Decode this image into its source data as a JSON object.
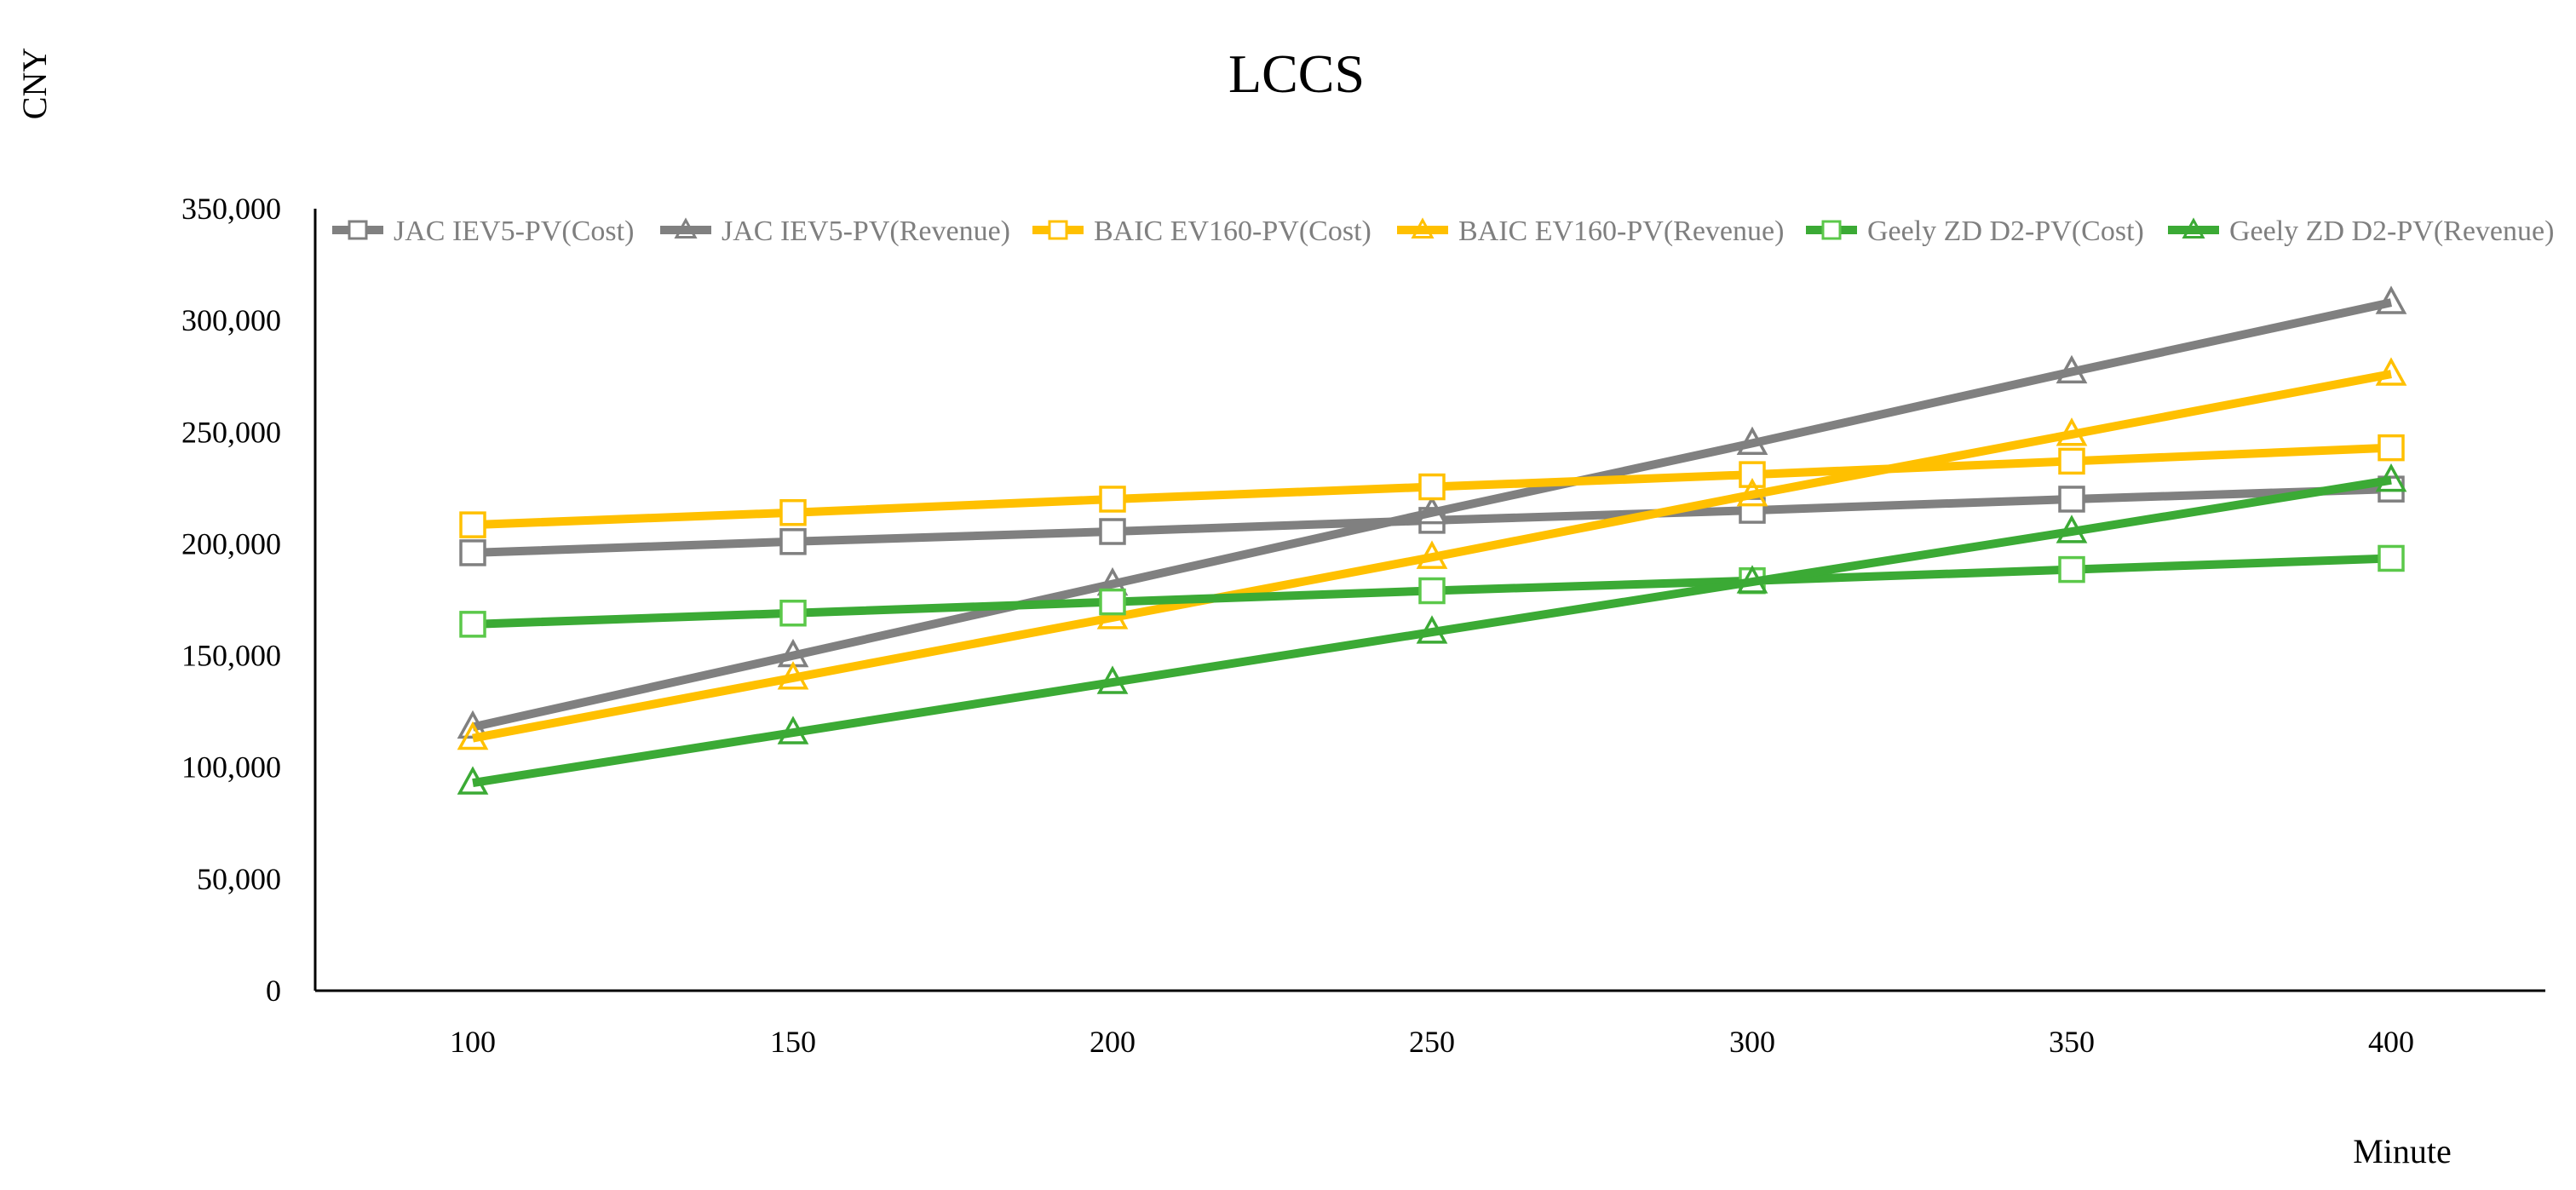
{
  "chart_data": {
    "type": "line",
    "title": "LCCS",
    "xlabel": "Minute",
    "ylabel": "CNY",
    "x": [
      100,
      150,
      200,
      250,
      300,
      350,
      400
    ],
    "x_tick_labels": [
      "100",
      "150",
      "200",
      "250",
      "300",
      "350",
      "400"
    ],
    "ylim": [
      0,
      350000
    ],
    "y_tick_labels": [
      "0",
      "50,000",
      "100,000",
      "150,000",
      "200,000",
      "250,000",
      "300,000",
      "350,000"
    ],
    "y_ticks": [
      0,
      50000,
      100000,
      150000,
      200000,
      250000,
      300000,
      350000
    ],
    "grid": false,
    "legend_position": "top",
    "series": [
      {
        "name": "JAC IEV5-PV(Cost)",
        "color": "#808080",
        "marker": "square",
        "values": [
          196000,
          201000,
          205500,
          210500,
          215000,
          220000,
          224500
        ]
      },
      {
        "name": "JAC IEV5-PV(Revenue)",
        "color": "#808080",
        "marker": "triangle",
        "values": [
          118000,
          150000,
          182000,
          214000,
          245000,
          277000,
          308000
        ]
      },
      {
        "name": "BAIC EV160-PV(Cost)",
        "color": "#FFC000",
        "marker": "square",
        "values": [
          208500,
          214000,
          220000,
          225500,
          231000,
          237000,
          243000
        ]
      },
      {
        "name": "BAIC EV160-PV(Revenue)",
        "color": "#FFC000",
        "marker": "triangle",
        "values": [
          113000,
          140000,
          167000,
          194000,
          222000,
          249000,
          276000
        ]
      },
      {
        "name": "Geely ZD D2-PV(Cost)",
        "color": "#3BAA35",
        "marker": "square",
        "values": [
          164000,
          169000,
          174000,
          179000,
          183500,
          188500,
          193500
        ]
      },
      {
        "name": "Geely ZD D2-PV(Revenue)",
        "color": "#3BAA35",
        "marker": "triangle",
        "values": [
          93000,
          115500,
          138000,
          160500,
          183000,
          205500,
          228500
        ]
      }
    ]
  }
}
